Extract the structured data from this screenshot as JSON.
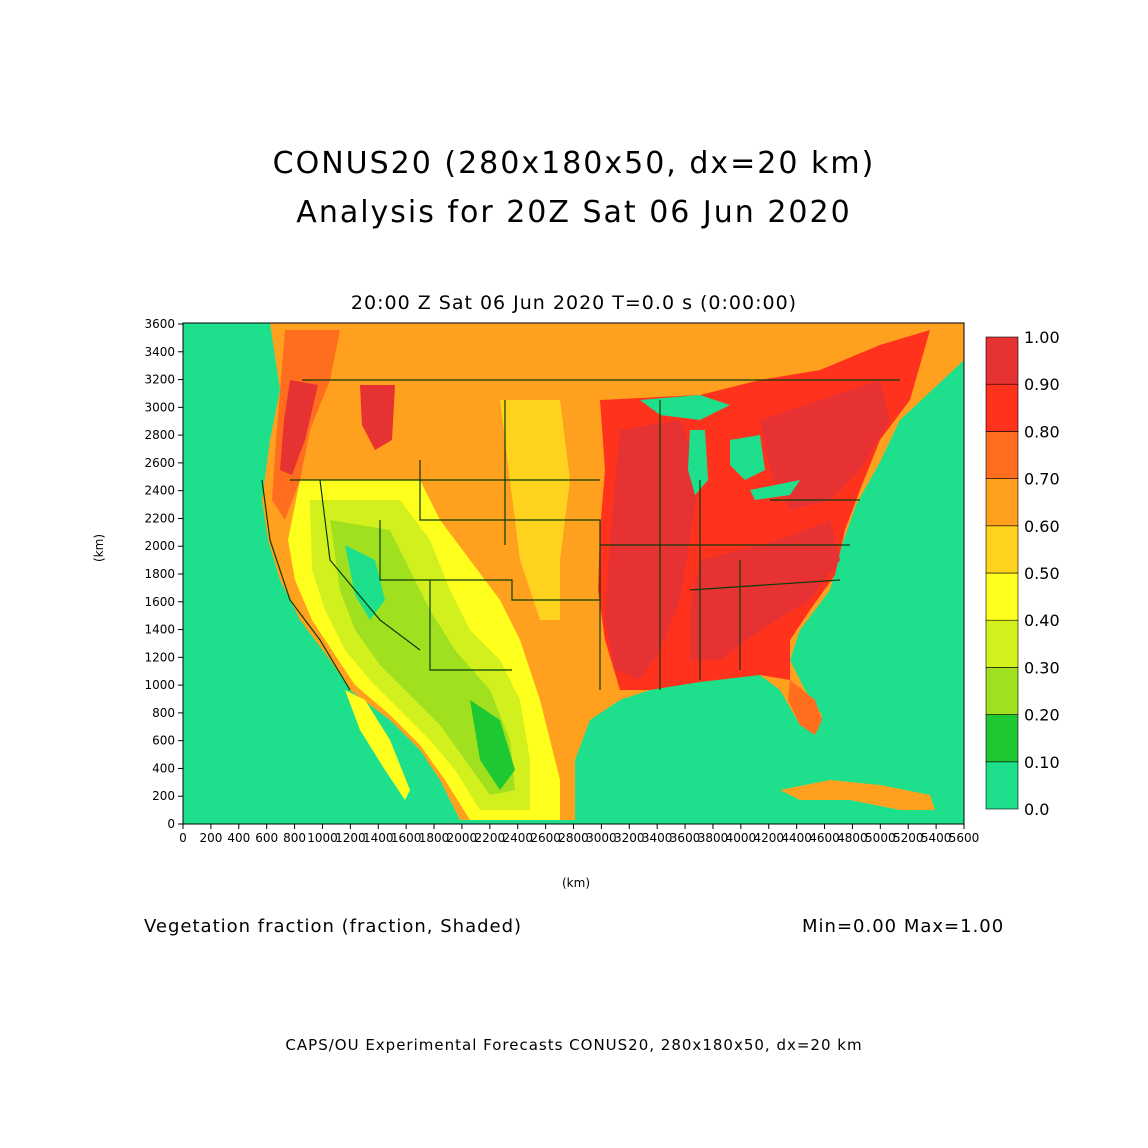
{
  "title": "CONUS20 (280x180x50, dx=20 km)",
  "subtitle": "Analysis for 20Z Sat 06 Jun 2020",
  "plot_time": "20:00 Z Sat 06 Jun 2020    T=0.0 s (0:00:00)",
  "variable_label": "Vegetation fraction (fraction, Shaded)",
  "minmax": "Min=0.00  Max=1.00",
  "footer": "CAPS/OU Experimental Forecasts  CONUS20, 280x180x50, dx=20 km",
  "x_unit": "(km)",
  "y_unit": "(km)",
  "x_ticks": [
    "0",
    "200",
    "400",
    "600",
    "800",
    "1000",
    "1200",
    "1400",
    "1600",
    "1800",
    "2000",
    "2200",
    "2400",
    "2600",
    "2800",
    "3000",
    "3200",
    "3400",
    "3600",
    "3800",
    "4000",
    "4200",
    "4400",
    "4600",
    "4800",
    "5000",
    "5200",
    "5400",
    "5600"
  ],
  "y_ticks": [
    "0",
    "200",
    "400",
    "600",
    "800",
    "1000",
    "1200",
    "1400",
    "1600",
    "1800",
    "2000",
    "2200",
    "2400",
    "2600",
    "2800",
    "3000",
    "3200",
    "3400",
    "3600"
  ],
  "colorbar": {
    "labels": [
      "0.0",
      "0.10",
      "0.20",
      "0.30",
      "0.40",
      "0.50",
      "0.60",
      "0.70",
      "0.80",
      "0.90",
      "1.00"
    ],
    "colors": [
      "#1ee08c",
      "#1ec832",
      "#a0e01e",
      "#d2f01e",
      "#ffff1e",
      "#ffd21e",
      "#ffa01e",
      "#ff6e1e",
      "#ff321e",
      "#e63232"
    ]
  },
  "map_colors": {
    "ocean": "#1ee08c",
    "border": "#0a3c0a"
  }
}
